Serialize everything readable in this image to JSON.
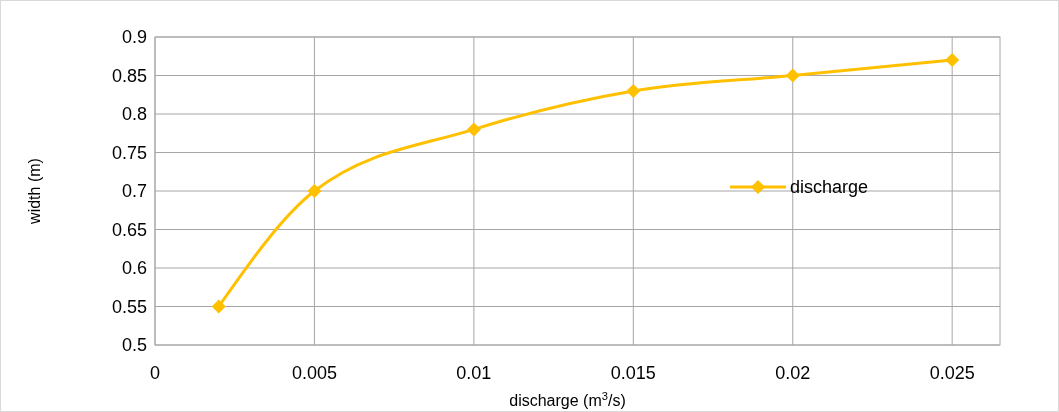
{
  "chart_data": {
    "type": "line",
    "xlabel": "discharge (m$^{3}$/s)",
    "ylabel": "width (m)",
    "x": [
      0.002,
      0.005,
      0.01,
      0.015,
      0.02,
      0.025
    ],
    "series": [
      {
        "name": "discharge",
        "color": "#ffc000",
        "values": [
          0.55,
          0.7,
          0.78,
          0.83,
          0.85,
          0.87
        ]
      }
    ],
    "xlim": [
      0,
      0.0265
    ],
    "xticks": [
      0,
      0.005,
      0.01,
      0.015,
      0.02,
      0.025
    ],
    "ylim": [
      0.5,
      0.9
    ],
    "yticks": [
      0.5,
      0.55,
      0.6,
      0.65,
      0.7,
      0.75,
      0.8,
      0.85,
      0.9
    ],
    "grid": true,
    "legend": "right",
    "marker": "diamond",
    "line_style": "solid"
  }
}
